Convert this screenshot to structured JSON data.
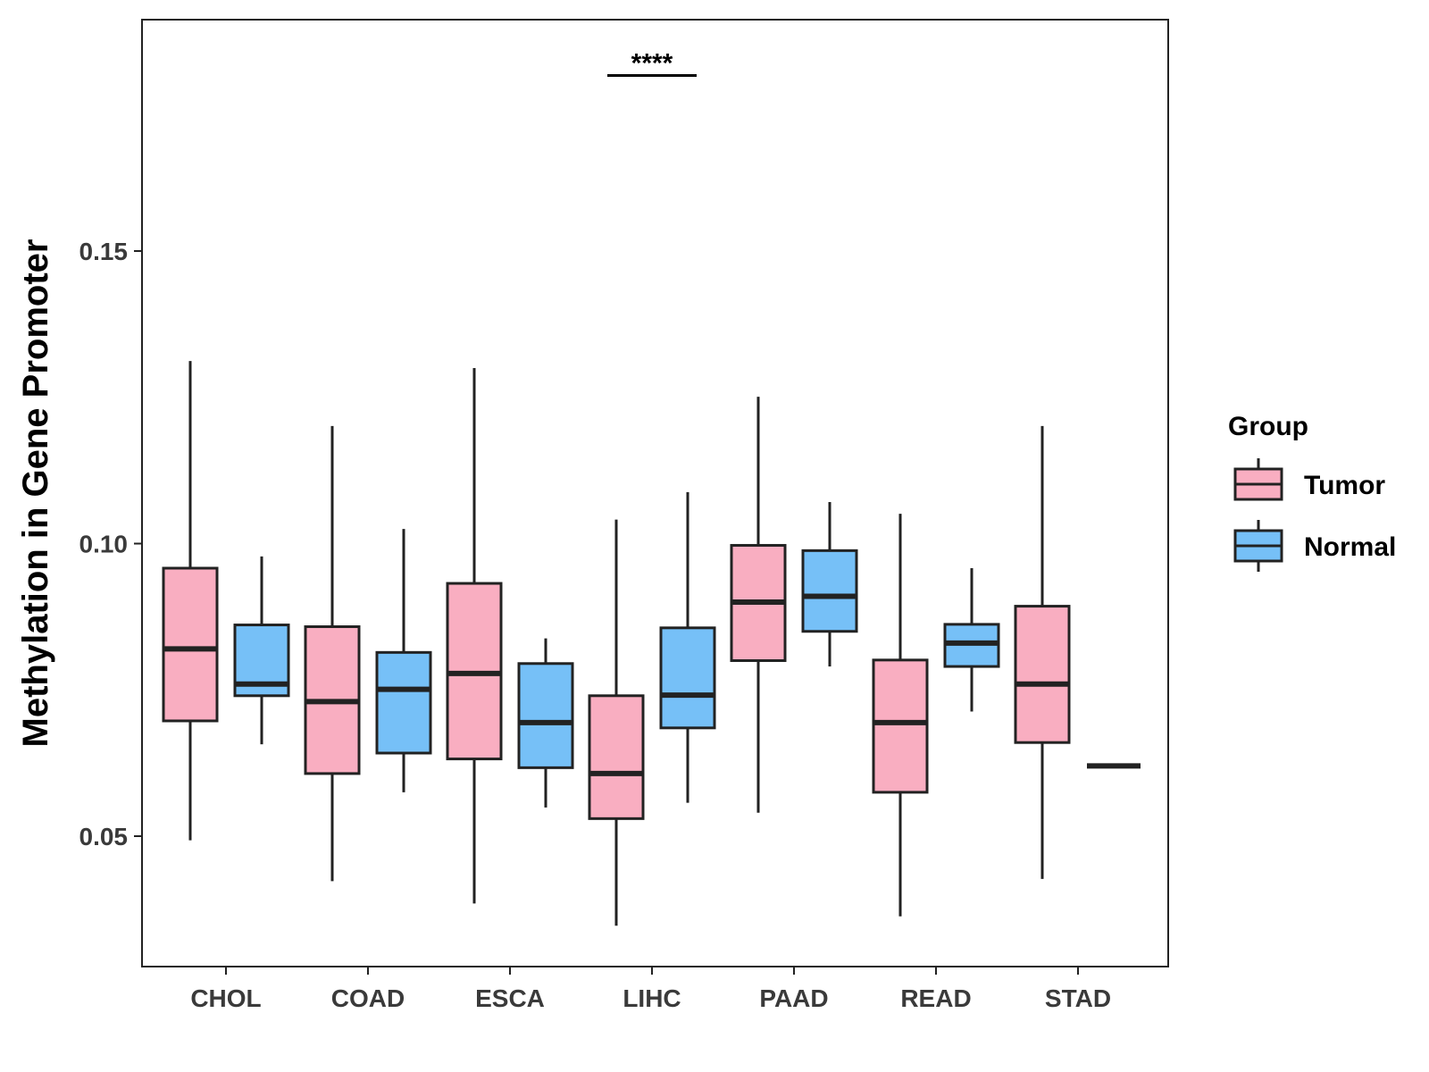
{
  "chart_data": {
    "type": "boxplot",
    "title": "",
    "xlabel": "",
    "ylabel": "Methylation in Gene Promoter",
    "ylim": [
      0.028,
      0.19
    ],
    "yticks": [
      0.05,
      0.1,
      0.15
    ],
    "ytick_labels": [
      "0.05",
      "0.10",
      "0.15"
    ],
    "categories": [
      "CHOL",
      "COAD",
      "ESCA",
      "LIHC",
      "PAAD",
      "READ",
      "STAD"
    ],
    "legend": {
      "title": "Group",
      "position": "right",
      "entries": [
        {
          "name": "Tumor",
          "color": "#f9aec1"
        },
        {
          "name": "Normal",
          "color": "#76c0f7"
        }
      ]
    },
    "series": [
      {
        "name": "Tumor",
        "color": "#f9aec1",
        "boxes": [
          {
            "category": "CHOL",
            "min": 0.0493,
            "q1": 0.0697,
            "median": 0.082,
            "q3": 0.0958,
            "max": 0.1312
          },
          {
            "category": "COAD",
            "min": 0.0423,
            "q1": 0.0607,
            "median": 0.073,
            "q3": 0.0858,
            "max": 0.1201
          },
          {
            "category": "ESCA",
            "min": 0.0385,
            "q1": 0.0632,
            "median": 0.0778,
            "q3": 0.0932,
            "max": 0.13
          },
          {
            "category": "LIHC",
            "min": 0.0347,
            "q1": 0.053,
            "median": 0.0607,
            "q3": 0.074,
            "max": 0.1041
          },
          {
            "category": "PAAD",
            "min": 0.054,
            "q1": 0.08,
            "median": 0.09,
            "q3": 0.0997,
            "max": 0.1251
          },
          {
            "category": "READ",
            "min": 0.0363,
            "q1": 0.0575,
            "median": 0.0694,
            "q3": 0.0801,
            "max": 0.1051
          },
          {
            "category": "STAD",
            "min": 0.0427,
            "q1": 0.066,
            "median": 0.076,
            "q3": 0.0893,
            "max": 0.1201
          }
        ]
      },
      {
        "name": "Normal",
        "color": "#76c0f7",
        "boxes": [
          {
            "category": "CHOL",
            "min": 0.0657,
            "q1": 0.074,
            "median": 0.076,
            "q3": 0.0861,
            "max": 0.0978
          },
          {
            "category": "COAD",
            "min": 0.0575,
            "q1": 0.0642,
            "median": 0.0751,
            "q3": 0.0814,
            "max": 0.1025
          },
          {
            "category": "ESCA",
            "min": 0.0549,
            "q1": 0.0617,
            "median": 0.0694,
            "q3": 0.0795,
            "max": 0.0838
          },
          {
            "category": "LIHC",
            "min": 0.0557,
            "q1": 0.0685,
            "median": 0.0741,
            "q3": 0.0856,
            "max": 0.1088
          },
          {
            "category": "PAAD",
            "min": 0.079,
            "q1": 0.085,
            "median": 0.091,
            "q3": 0.0988,
            "max": 0.1071
          },
          {
            "category": "READ",
            "min": 0.0713,
            "q1": 0.079,
            "median": 0.083,
            "q3": 0.0862,
            "max": 0.0958
          },
          {
            "category": "STAD",
            "min": 0.062,
            "q1": 0.062,
            "median": 0.062,
            "q3": 0.062,
            "max": 0.062
          }
        ]
      }
    ],
    "annotations": [
      {
        "category": "LIHC",
        "text": "****",
        "y": 0.18
      }
    ]
  }
}
